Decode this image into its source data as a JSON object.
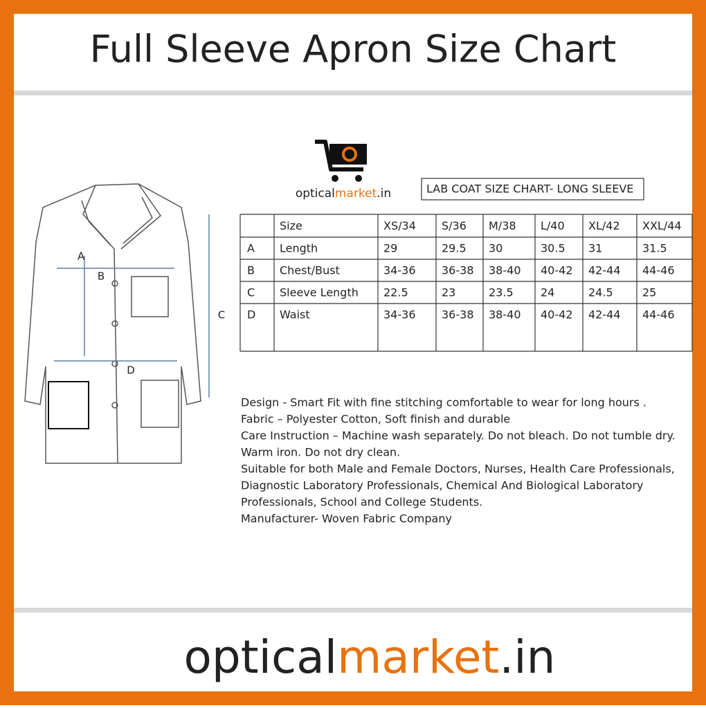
{
  "header": {
    "title": "Full Sleeve Apron Size Chart"
  },
  "logo": {
    "parts": [
      "optical",
      "market",
      ".in"
    ]
  },
  "size_chart": {
    "title": "LAB COAT SIZE CHART- LONG SLEEVE",
    "header": {
      "label": "Size",
      "sizes": [
        "XS/34",
        "S/36",
        "M/38",
        "L/40",
        "XL/42",
        "XXL/44"
      ]
    },
    "rows": [
      {
        "key": "A",
        "name": "Length",
        "values": [
          "29",
          "29.5",
          "30",
          "30.5",
          "31",
          "31.5"
        ]
      },
      {
        "key": "B",
        "name": "Chest/Bust",
        "values": [
          "34-36",
          "36-38",
          "38-40",
          "40-42",
          "42-44",
          "44-46"
        ]
      },
      {
        "key": "C",
        "name": "Sleeve Length",
        "values": [
          "22.5",
          "23",
          "23.5",
          "24",
          "24.5",
          "25"
        ]
      },
      {
        "key": "D",
        "name": "Waist",
        "values": [
          "34-36",
          "36-38",
          "38-40",
          "40-42",
          "42-44",
          "44-46"
        ]
      }
    ]
  },
  "diagram": {
    "labels": [
      "A",
      "B",
      "C",
      "D"
    ]
  },
  "description": [
    "Design - Smart Fit with fine stitching comfortable to wear  for  long hours .",
    "Fabric – Polyester Cotton, Soft finish and durable",
    "Care Instruction – Machine wash separately. Do not bleach. Do not tumble dry.",
    "Warm iron. Do not dry clean.",
    "Suitable for both Male and Female Doctors, Nurses, Health Care Professionals,",
    "Diagnostic Laboratory Professionals, Chemical And Biological Laboratory",
    "Professionals, School and College Students.",
    "Manufacturer- Woven Fabric Company"
  ],
  "footer": {
    "parts": [
      "optical",
      "market",
      ".in"
    ]
  }
}
